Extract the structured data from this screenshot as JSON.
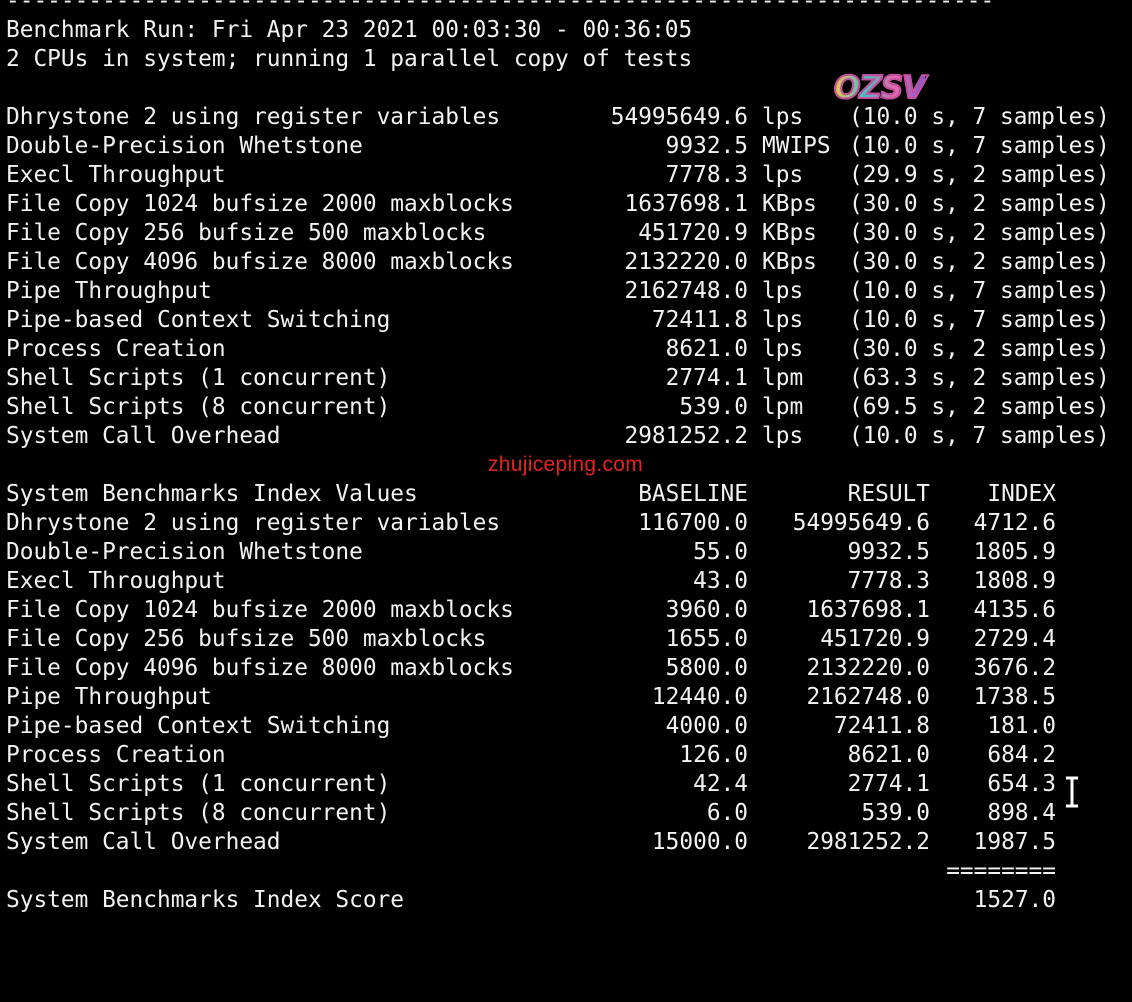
{
  "terminal": {
    "separator_top": "------------------------------------------------------------------------",
    "run_line": "Benchmark Run: Fri Apr 23 2021 00:03:30 - 00:36:05",
    "cpu_line": "2 CPUs in system; running 1 parallel copy of tests",
    "results": [
      {
        "name": "Dhrystone 2 using register variables",
        "value": "54995649.6",
        "unit": "lps",
        "time": "(10.0 s, 7 samples)"
      },
      {
        "name": "Double-Precision Whetstone",
        "value": "9932.5",
        "unit": "MWIPS",
        "time": "(10.0 s, 7 samples)"
      },
      {
        "name": "Execl Throughput",
        "value": "7778.3",
        "unit": "lps",
        "time": "(29.9 s, 2 samples)"
      },
      {
        "name": "File Copy 1024 bufsize 2000 maxblocks",
        "value": "1637698.1",
        "unit": "KBps",
        "time": "(30.0 s, 2 samples)"
      },
      {
        "name": "File Copy 256 bufsize 500 maxblocks",
        "value": "451720.9",
        "unit": "KBps",
        "time": "(30.0 s, 2 samples)"
      },
      {
        "name": "File Copy 4096 bufsize 8000 maxblocks",
        "value": "2132220.0",
        "unit": "KBps",
        "time": "(30.0 s, 2 samples)"
      },
      {
        "name": "Pipe Throughput",
        "value": "2162748.0",
        "unit": "lps",
        "time": "(10.0 s, 7 samples)"
      },
      {
        "name": "Pipe-based Context Switching",
        "value": "72411.8",
        "unit": "lps",
        "time": "(10.0 s, 7 samples)"
      },
      {
        "name": "Process Creation",
        "value": "8621.0",
        "unit": "lps",
        "time": "(30.0 s, 2 samples)"
      },
      {
        "name": "Shell Scripts (1 concurrent)",
        "value": "2774.1",
        "unit": "lpm",
        "time": "(63.3 s, 2 samples)"
      },
      {
        "name": "Shell Scripts (8 concurrent)",
        "value": "539.0",
        "unit": "lpm",
        "time": "(69.5 s, 2 samples)"
      },
      {
        "name": "System Call Overhead",
        "value": "2981252.2",
        "unit": "lps",
        "time": "(10.0 s, 7 samples)"
      }
    ],
    "index_header": {
      "title": "System Benchmarks Index Values",
      "baseline": "BASELINE",
      "result": "RESULT",
      "index": "INDEX"
    },
    "index_rows": [
      {
        "name": "Dhrystone 2 using register variables",
        "baseline": "116700.0",
        "result": "54995649.6",
        "index": "4712.6"
      },
      {
        "name": "Double-Precision Whetstone",
        "baseline": "55.0",
        "result": "9932.5",
        "index": "1805.9"
      },
      {
        "name": "Execl Throughput",
        "baseline": "43.0",
        "result": "7778.3",
        "index": "1808.9"
      },
      {
        "name": "File Copy 1024 bufsize 2000 maxblocks",
        "baseline": "3960.0",
        "result": "1637698.1",
        "index": "4135.6"
      },
      {
        "name": "File Copy 256 bufsize 500 maxblocks",
        "baseline": "1655.0",
        "result": "451720.9",
        "index": "2729.4"
      },
      {
        "name": "File Copy 4096 bufsize 8000 maxblocks",
        "baseline": "5800.0",
        "result": "2132220.0",
        "index": "3676.2"
      },
      {
        "name": "Pipe Throughput",
        "baseline": "12440.0",
        "result": "2162748.0",
        "index": "1738.5"
      },
      {
        "name": "Pipe-based Context Switching",
        "baseline": "4000.0",
        "result": "72411.8",
        "index": "181.0"
      },
      {
        "name": "Process Creation",
        "baseline": "126.0",
        "result": "8621.0",
        "index": "684.2"
      },
      {
        "name": "Shell Scripts (1 concurrent)",
        "baseline": "42.4",
        "result": "2774.1",
        "index": "654.3"
      },
      {
        "name": "Shell Scripts (8 concurrent)",
        "baseline": "6.0",
        "result": "539.0",
        "index": "898.4"
      },
      {
        "name": "System Call Overhead",
        "baseline": "15000.0",
        "result": "2981252.2",
        "index": "1987.5"
      }
    ],
    "score_separator": "========",
    "score_label": "System Benchmarks Index Score",
    "score_value": "1527.0"
  },
  "watermarks": {
    "site": "zhujiceping.com",
    "logo": "OZSV"
  },
  "colors": {
    "background": "#000000",
    "text": "#f2f2f2",
    "watermark": "#e3231f"
  }
}
